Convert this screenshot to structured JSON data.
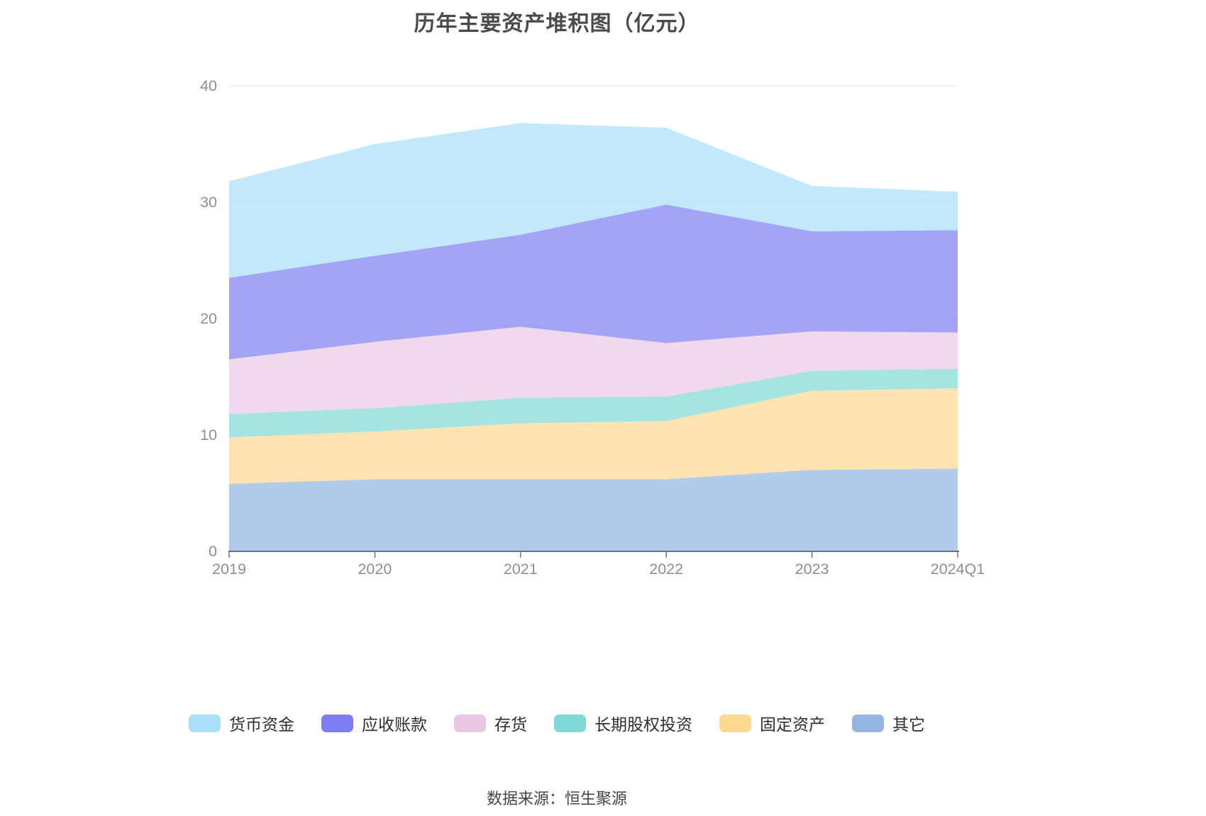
{
  "title": "历年主要资产堆积图（亿元）",
  "source_note": "数据来源：恒生聚源",
  "axis_style": {
    "grid_color": "#E8EBF3",
    "axis_line_color": "#6E7079",
    "tick_color": "#6E7079",
    "label_color": "#8A8F98"
  },
  "chart_data": {
    "type": "area",
    "stacked": true,
    "title": "历年主要资产堆积图（亿元）",
    "categories": [
      "2019",
      "2020",
      "2021",
      "2022",
      "2023",
      "2024Q1"
    ],
    "series": [
      {
        "id": "others",
        "name": "其它",
        "color": "#93B5E1",
        "values": [
          5.8,
          6.2,
          6.2,
          6.2,
          7.0,
          7.1
        ]
      },
      {
        "id": "fixed-assets",
        "name": "固定资产",
        "color": "#FFD992",
        "values": [
          4.0,
          4.1,
          4.8,
          5.0,
          6.8,
          6.9
        ]
      },
      {
        "id": "long-term-equity-investment",
        "name": "长期股权投资",
        "color": "#7EDAD5",
        "values": [
          2.0,
          2.0,
          2.2,
          2.1,
          1.7,
          1.7
        ]
      },
      {
        "id": "inventory",
        "name": "存货",
        "color": "#EBC7E6",
        "values": [
          4.7,
          5.7,
          6.1,
          4.6,
          3.4,
          3.1
        ]
      },
      {
        "id": "accounts-receivable",
        "name": "应收账款",
        "color": "#7D7DF1",
        "values": [
          7.0,
          7.4,
          7.9,
          11.9,
          8.6,
          8.8
        ]
      },
      {
        "id": "monetary-funds",
        "name": "货币资金",
        "color": "#A8DFF9",
        "values": [
          8.3,
          9.6,
          9.6,
          6.6,
          3.9,
          3.3
        ]
      }
    ],
    "stack_order": "bottom_to_top",
    "stacked_totals": [
      31.8,
      35.0,
      36.8,
      36.4,
      31.4,
      30.9
    ],
    "legend_order": [
      "货币资金",
      "应收账款",
      "存货",
      "长期股权投资",
      "固定资产",
      "其它"
    ],
    "legend_position": "bottom",
    "xlabel": "",
    "ylabel": "",
    "ylim": [
      0,
      40
    ],
    "yticks": [
      0,
      10,
      20,
      30,
      40
    ],
    "grid": true,
    "area_opacity": 0.7
  }
}
